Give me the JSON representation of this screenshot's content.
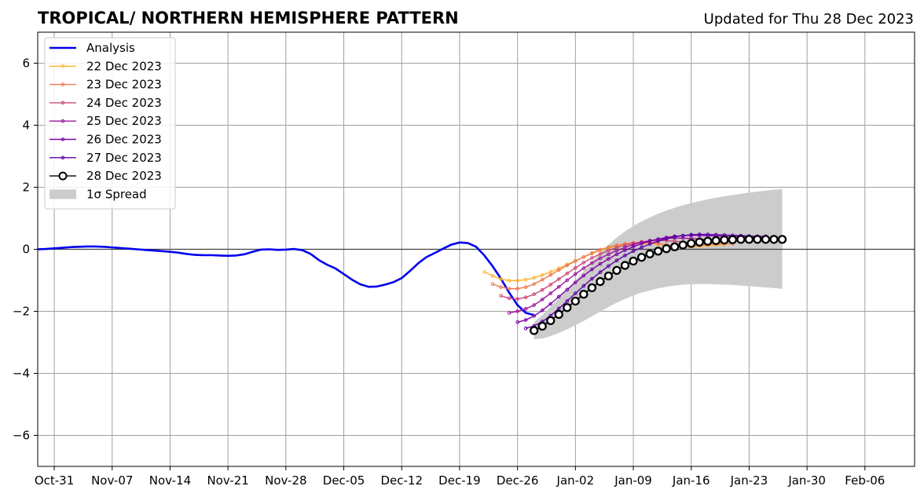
{
  "chart_data": {
    "type": "line",
    "title": "TROPICAL/ NORTHERN HEMISPHERE PATTERN",
    "subtitle": "Updated for Thu 28 Dec 2023",
    "xlabel": "",
    "ylabel": "",
    "x_start": "2023-10-29",
    "xlim": [
      "2023-10-29",
      "2024-02-12"
    ],
    "ylim": [
      -7,
      7
    ],
    "x_tick_labels": [
      "Oct-31",
      "Nov-07",
      "Nov-14",
      "Nov-21",
      "Nov-28",
      "Dec-05",
      "Dec-12",
      "Dec-19",
      "Dec-26",
      "Jan-02",
      "Jan-09",
      "Jan-16",
      "Jan-23",
      "Jan-30",
      "Feb-06"
    ],
    "x_tick_dates": [
      "2023-10-31",
      "2023-11-07",
      "2023-11-14",
      "2023-11-21",
      "2023-11-28",
      "2023-12-05",
      "2023-12-12",
      "2023-12-19",
      "2023-12-26",
      "2024-01-02",
      "2024-01-09",
      "2024-01-16",
      "2024-01-23",
      "2024-01-30",
      "2024-02-06"
    ],
    "y_ticks": [
      6,
      4,
      2,
      0,
      -2,
      -4,
      -6
    ],
    "y_tick_labels": [
      "6",
      "4",
      "2",
      "0",
      "−2",
      "−4",
      "−6"
    ],
    "grid": true,
    "zero_line": true,
    "legend_position": "upper-left",
    "analysis": {
      "name": "Analysis",
      "color": "#0000ee",
      "start": "2023-10-29",
      "values": [
        0.0,
        0.01,
        0.03,
        0.05,
        0.07,
        0.08,
        0.09,
        0.09,
        0.08,
        0.06,
        0.04,
        0.02,
        0.0,
        -0.02,
        -0.04,
        -0.06,
        -0.08,
        -0.11,
        -0.15,
        -0.18,
        -0.19,
        -0.19,
        -0.2,
        -0.21,
        -0.2,
        -0.16,
        -0.08,
        -0.01,
        0.0,
        -0.02,
        -0.01,
        0.01,
        -0.03,
        -0.15,
        -0.35,
        -0.5,
        -0.62,
        -0.8,
        -0.98,
        -1.13,
        -1.21,
        -1.2,
        -1.14,
        -1.06,
        -0.93,
        -0.7,
        -0.45,
        -0.25,
        -0.12,
        0.02,
        0.15,
        0.22,
        0.2,
        0.08,
        -0.2,
        -0.55,
        -0.95,
        -1.4,
        -1.8,
        -2.05,
        -2.12
      ]
    },
    "forecasts": [
      {
        "name": "22 Dec 2023",
        "color": "#fdb42f",
        "start": "2023-12-22",
        "values": [
          -0.73,
          -0.86,
          -0.96,
          -1.01,
          -1.01,
          -0.98,
          -0.92,
          -0.83,
          -0.73,
          -0.61,
          -0.49,
          -0.37,
          -0.25,
          -0.14,
          -0.04,
          0.04,
          0.1,
          0.15,
          0.18,
          0.19,
          0.19,
          0.16,
          0.12,
          0.1,
          0.08,
          0.08,
          0.1,
          0.12,
          0.14,
          0.15
        ]
      },
      {
        "name": "23 Dec 2023",
        "color": "#ed7953",
        "start": "2023-12-23",
        "values": [
          -1.12,
          -1.22,
          -1.27,
          -1.27,
          -1.22,
          -1.12,
          -0.98,
          -0.83,
          -0.67,
          -0.52,
          -0.38,
          -0.25,
          -0.12,
          -0.01,
          0.07,
          0.13,
          0.18,
          0.21,
          0.22,
          0.21,
          0.18,
          0.14,
          0.1,
          0.09,
          0.1,
          0.13,
          0.15,
          0.17,
          0.18,
          0.18
        ]
      },
      {
        "name": "24 Dec 2023",
        "color": "#cc4778",
        "start": "2023-12-24",
        "values": [
          -1.5,
          -1.58,
          -1.6,
          -1.55,
          -1.45,
          -1.31,
          -1.14,
          -0.96,
          -0.78,
          -0.6,
          -0.43,
          -0.28,
          -0.15,
          -0.04,
          0.06,
          0.13,
          0.19,
          0.24,
          0.27,
          0.28,
          0.28,
          0.26,
          0.23,
          0.21,
          0.2,
          0.21,
          0.23,
          0.25,
          0.26,
          0.27
        ]
      },
      {
        "name": "25 Dec 2023",
        "color": "#9c179e",
        "start": "2023-12-25",
        "values": [
          -2.05,
          -2.0,
          -1.92,
          -1.8,
          -1.62,
          -1.42,
          -1.21,
          -1.0,
          -0.8,
          -0.61,
          -0.44,
          -0.29,
          -0.16,
          -0.04,
          0.06,
          0.15,
          0.22,
          0.28,
          0.32,
          0.35,
          0.36,
          0.36,
          0.35,
          0.33,
          0.31,
          0.3,
          0.29,
          0.29,
          0.29,
          0.29
        ]
      },
      {
        "name": "26 Dec 2023",
        "color": "#7e03a8",
        "start": "2023-12-26",
        "values": [
          -2.35,
          -2.28,
          -2.15,
          -1.97,
          -1.76,
          -1.53,
          -1.3,
          -1.07,
          -0.85,
          -0.65,
          -0.47,
          -0.31,
          -0.16,
          -0.03,
          0.08,
          0.18,
          0.26,
          0.33,
          0.38,
          0.42,
          0.44,
          0.45,
          0.45,
          0.44,
          0.43,
          0.42,
          0.41,
          0.4,
          0.4,
          0.4
        ]
      },
      {
        "name": "27 Dec 2023",
        "color": "#5c01a6",
        "start": "2023-12-27",
        "values": [
          -2.55,
          -2.47,
          -2.33,
          -2.14,
          -1.91,
          -1.67,
          -1.42,
          -1.18,
          -0.95,
          -0.74,
          -0.54,
          -0.36,
          -0.2,
          -0.06,
          0.06,
          0.17,
          0.26,
          0.34,
          0.4,
          0.44,
          0.47,
          0.48,
          0.48,
          0.47,
          0.46,
          0.45,
          0.44,
          0.43,
          0.42,
          0.42
        ]
      }
    ],
    "current": {
      "name": "28 Dec 2023",
      "color": "#000000",
      "start": "2023-12-28",
      "values": [
        -2.62,
        -2.48,
        -2.3,
        -2.1,
        -1.88,
        -1.67,
        -1.45,
        -1.24,
        -1.04,
        -0.86,
        -0.68,
        -0.52,
        -0.38,
        -0.26,
        -0.15,
        -0.06,
        0.02,
        0.08,
        0.14,
        0.19,
        0.23,
        0.26,
        0.28,
        0.3,
        0.31,
        0.32,
        0.32,
        0.32,
        0.32,
        0.32,
        0.32
      ]
    },
    "spread": {
      "name": "1σ Spread",
      "color": "#cccccc",
      "start": "2023-12-28",
      "upper": [
        -2.35,
        -2.12,
        -1.86,
        -1.58,
        -1.29,
        -1.0,
        -0.7,
        -0.4,
        -0.12,
        0.15,
        0.38,
        0.58,
        0.75,
        0.9,
        1.03,
        1.15,
        1.25,
        1.34,
        1.42,
        1.49,
        1.55,
        1.61,
        1.66,
        1.71,
        1.75,
        1.79,
        1.83,
        1.86,
        1.89,
        1.92,
        1.94
      ],
      "lower": [
        -2.9,
        -2.88,
        -2.8,
        -2.7,
        -2.58,
        -2.45,
        -2.31,
        -2.16,
        -2.01,
        -1.86,
        -1.72,
        -1.6,
        -1.49,
        -1.4,
        -1.33,
        -1.26,
        -1.21,
        -1.17,
        -1.14,
        -1.13,
        -1.12,
        -1.12,
        -1.13,
        -1.14,
        -1.15,
        -1.17,
        -1.19,
        -1.21,
        -1.23,
        -1.25,
        -1.28
      ]
    }
  }
}
